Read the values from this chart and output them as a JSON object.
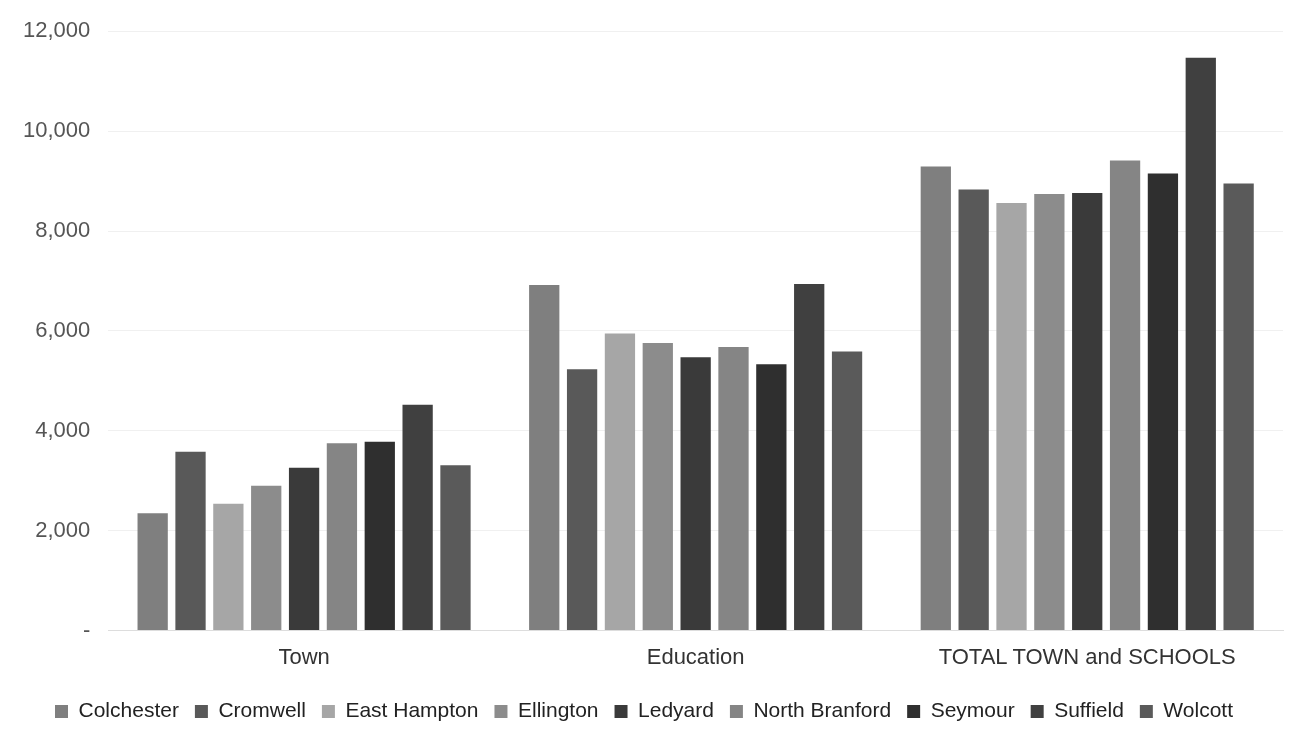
{
  "chart_data": {
    "type": "bar",
    "categories": [
      "Town",
      "Education",
      "TOTAL TOWN and SCHOOLS"
    ],
    "series": [
      {
        "name": "Colchester",
        "color": "#7f7f7f",
        "values": [
          2350,
          6920,
          9290
        ]
      },
      {
        "name": "Cromwell",
        "color": "#595959",
        "values": [
          3580,
          5230,
          8830
        ]
      },
      {
        "name": "East Hampton",
        "color": "#a6a6a6",
        "values": [
          2540,
          5950,
          8560
        ]
      },
      {
        "name": "Ellington",
        "color": "#8c8c8c",
        "values": [
          2900,
          5760,
          8740
        ]
      },
      {
        "name": "Ledyard",
        "color": "#3a3a3a",
        "values": [
          3260,
          5470,
          8760
        ]
      },
      {
        "name": "North Branford",
        "color": "#858585",
        "values": [
          3750,
          5680,
          9410
        ]
      },
      {
        "name": "Seymour",
        "color": "#2f2f2f",
        "values": [
          3780,
          5330,
          9150
        ]
      },
      {
        "name": "Suffield",
        "color": "#404040",
        "values": [
          4520,
          6940,
          11470
        ]
      },
      {
        "name": "Wolcott",
        "color": "#5a5a5a",
        "values": [
          3310,
          5590,
          8950
        ]
      }
    ],
    "ylim": [
      0,
      12000
    ],
    "yticks": [
      {
        "value": 0,
        "label": "-"
      },
      {
        "value": 2000,
        "label": "2,000"
      },
      {
        "value": 4000,
        "label": "4,000"
      },
      {
        "value": 6000,
        "label": "6,000"
      },
      {
        "value": 8000,
        "label": "8,000"
      },
      {
        "value": 10000,
        "label": "10,000"
      },
      {
        "value": 12000,
        "label": "12,000"
      }
    ],
    "grid": "y",
    "legend": "bottom"
  }
}
